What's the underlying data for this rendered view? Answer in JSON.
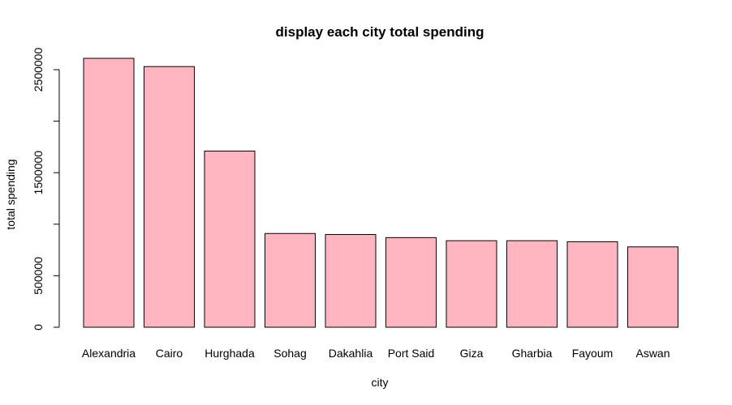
{
  "chart_data": {
    "type": "bar",
    "title": "display each city total spending",
    "xlabel": "city",
    "ylabel": "total spending",
    "categories": [
      "Alexandria",
      "Cairo",
      "Hurghada",
      "Sohag",
      "Dakahlia",
      "Port Said",
      "Giza",
      "Gharbia",
      "Fayoum",
      "Aswan"
    ],
    "values": [
      2610000,
      2530000,
      1710000,
      910000,
      900000,
      870000,
      840000,
      840000,
      830000,
      780000
    ],
    "ylim": [
      0,
      2500000
    ],
    "yticks": [
      0,
      500000,
      1000000,
      1500000,
      2000000,
      2500000
    ],
    "ytick_labels": [
      "0",
      "500000",
      "",
      "1500000",
      "",
      "2500000"
    ],
    "bar_color": "#FFB6C1",
    "grid": false,
    "legend": false
  }
}
